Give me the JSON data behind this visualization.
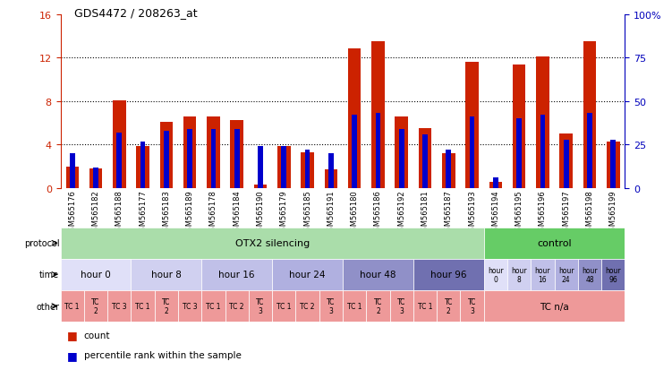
{
  "title": "GDS4472 / 208263_at",
  "samples": [
    "GSM565176",
    "GSM565182",
    "GSM565188",
    "GSM565177",
    "GSM565183",
    "GSM565189",
    "GSM565178",
    "GSM565184",
    "GSM565190",
    "GSM565179",
    "GSM565185",
    "GSM565191",
    "GSM565180",
    "GSM565186",
    "GSM565192",
    "GSM565181",
    "GSM565187",
    "GSM565193",
    "GSM565194",
    "GSM565195",
    "GSM565196",
    "GSM565197",
    "GSM565198",
    "GSM565199"
  ],
  "count_values": [
    2.0,
    1.8,
    8.1,
    3.9,
    6.1,
    6.6,
    6.6,
    6.3,
    0.3,
    3.9,
    3.3,
    1.7,
    12.8,
    13.5,
    6.6,
    5.5,
    3.2,
    11.6,
    0.6,
    11.4,
    12.1,
    5.0,
    13.5,
    4.3
  ],
  "percentile_values": [
    20,
    12,
    32,
    27,
    33,
    34,
    34,
    34,
    24,
    24,
    22,
    20,
    42,
    43,
    34,
    31,
    22,
    41,
    6,
    40,
    42,
    28,
    43,
    28
  ],
  "bar_color": "#cc2200",
  "percentile_color": "#0000cc",
  "ylim_left": [
    0,
    16
  ],
  "ylim_right": [
    0,
    100
  ],
  "yticks_left": [
    0,
    4,
    8,
    12,
    16
  ],
  "yticks_right": [
    0,
    25,
    50,
    75,
    100
  ],
  "protocol_colors": [
    "#aaddaa",
    "#66cc66"
  ],
  "time_colors_main": [
    "#e8e8f8",
    "#d8d8f0",
    "#c8c8e8",
    "#b8b8e0",
    "#9898c8",
    "#7878b0"
  ],
  "other_color": "#ee9999",
  "label_color_left": "#cc2200",
  "label_color_right": "#0000bb"
}
